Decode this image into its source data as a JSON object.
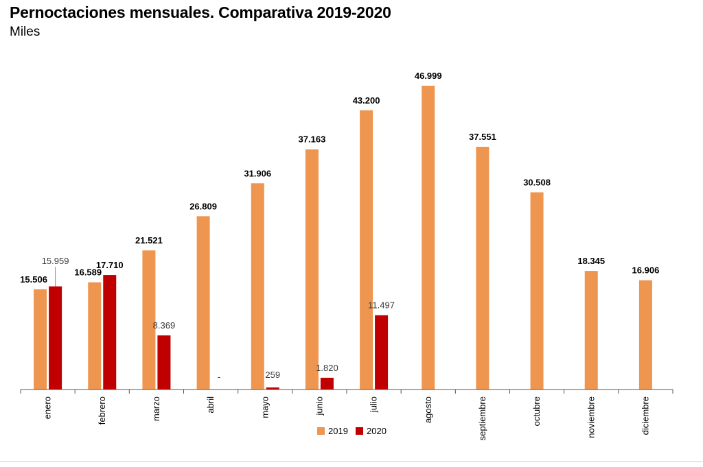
{
  "title": "Pernoctaciones mensuales. Comparativa 2019-2020",
  "subtitle": "Miles",
  "colors": {
    "2019": "#ee9650",
    "2020": "#c00000"
  },
  "chart_data": {
    "type": "bar",
    "title": "Pernoctaciones mensuales. Comparativa 2019-2020",
    "subtitle": "Miles",
    "categories": [
      "enero",
      "febrero",
      "marzo",
      "abril",
      "mayo",
      "junio",
      "julio",
      "agosto",
      "septiembre",
      "octubre",
      "noviembre",
      "diciembre"
    ],
    "series": [
      {
        "name": "2019",
        "values": [
          15506,
          16589,
          21521,
          26809,
          31906,
          37163,
          43200,
          46999,
          37551,
          30508,
          18345,
          16906
        ],
        "labels": [
          "15.506",
          "16.589",
          "21.521",
          "26.809",
          "31.906",
          "37.163",
          "43.200",
          "46.999",
          "37.551",
          "30.508",
          "18.345",
          "16.906"
        ]
      },
      {
        "name": "2020",
        "values": [
          15959,
          17710,
          8369,
          null,
          259,
          1820,
          11497,
          null,
          null,
          null,
          null,
          null
        ],
        "labels": [
          "15.959",
          "17.710",
          "8.369",
          "-",
          "259",
          "1.820",
          "11.497",
          null,
          null,
          null,
          null,
          null
        ]
      }
    ],
    "ylim": [
      0,
      47000
    ],
    "grid": false,
    "legend": "bottom-center"
  }
}
